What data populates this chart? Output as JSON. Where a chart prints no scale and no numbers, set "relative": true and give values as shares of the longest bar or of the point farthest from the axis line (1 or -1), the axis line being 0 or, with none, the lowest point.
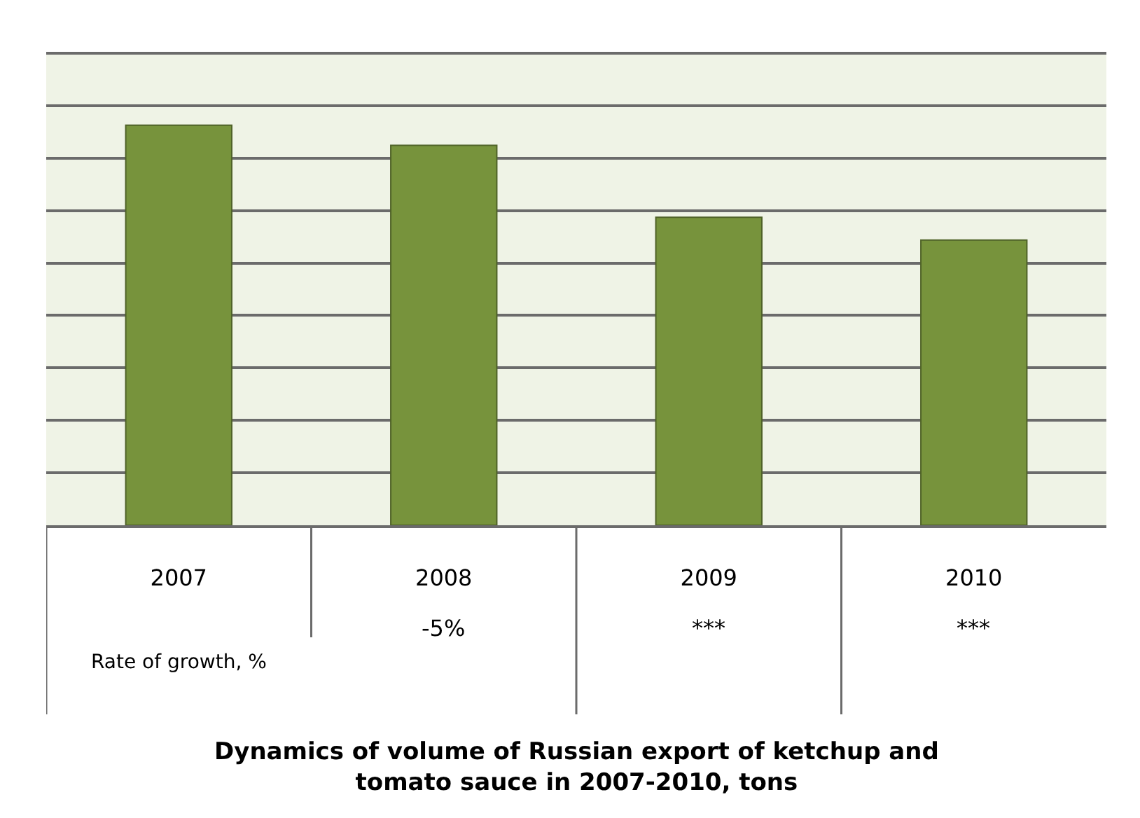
{
  "chart_data": {
    "type": "bar",
    "title": "Dynamics of volume of Russian export of ketchup and tomato sauce in 2007-2010, tons",
    "categories": [
      "2007",
      "2008",
      "2009",
      "2010"
    ],
    "values": [
      1,
      0.95,
      0.77,
      0.713
    ],
    "annotations": [
      "Rate of growth, %",
      "-5%",
      "***",
      "***"
    ],
    "color": "#77933c",
    "relative": true,
    "grid": "y",
    "legend": false
  }
}
